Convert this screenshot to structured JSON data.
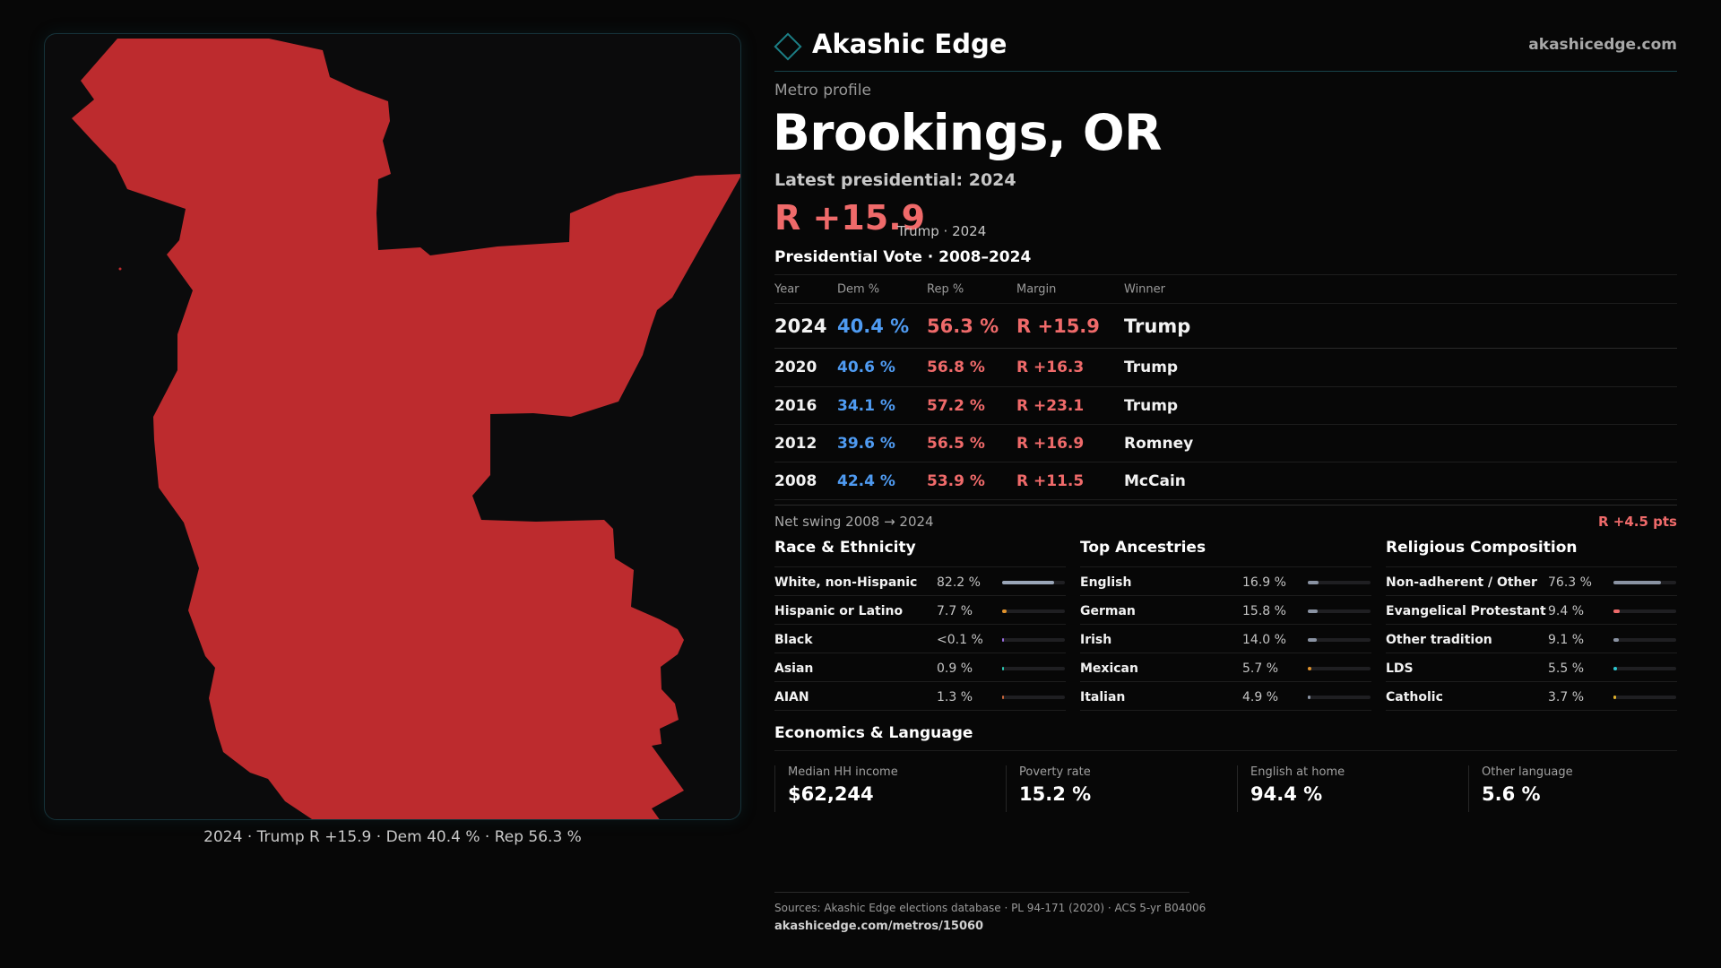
{
  "map": {
    "caption": "2024 · Trump R +15.9 · Dem 40.4 % · Rep 56.3 %",
    "fill_color": "#bd2b2e",
    "background_color": "#0b0b0c"
  },
  "header": {
    "brand": "Akashic Edge",
    "site": "akashicedge.com",
    "eyebrow": "Metro profile",
    "title": "Brookings, OR",
    "latest_label": "Latest presidential: 2024",
    "margin": "R +15.9",
    "margin_sub": "Trump · 2024"
  },
  "vote": {
    "title": "Presidential Vote · 2008–2024",
    "columns": [
      "Year",
      "Dem %",
      "Rep %",
      "Margin",
      "Winner"
    ],
    "rows": [
      {
        "year": "2024",
        "dem": "40.4 %",
        "rep": "56.3 %",
        "margin": "R +15.9",
        "winner": "Trump"
      },
      {
        "year": "2020",
        "dem": "40.6 %",
        "rep": "56.8 %",
        "margin": "R +16.3",
        "winner": "Trump"
      },
      {
        "year": "2016",
        "dem": "34.1 %",
        "rep": "57.2 %",
        "margin": "R +23.1",
        "winner": "Trump"
      },
      {
        "year": "2012",
        "dem": "39.6 %",
        "rep": "56.5 %",
        "margin": "R +16.9",
        "winner": "Romney"
      },
      {
        "year": "2008",
        "dem": "42.4 %",
        "rep": "53.9 %",
        "margin": "R +11.5",
        "winner": "McCain"
      }
    ],
    "swing_label": "Net swing 2008 → 2024",
    "swing_value": "R +4.5 pts"
  },
  "demographics": [
    {
      "title": "Race & Ethnicity",
      "rows": [
        {
          "label": "White, non-Hispanic",
          "value": "82.2 %",
          "pct": 82.2,
          "color": "#9aa6b8"
        },
        {
          "label": "Hispanic or Latino",
          "value": "7.7 %",
          "pct": 7.7,
          "color": "#e0922c"
        },
        {
          "label": "Black",
          "value": "<0.1 %",
          "pct": 0.05,
          "color": "#9a6de0"
        },
        {
          "label": "Asian",
          "value": "0.9 %",
          "pct": 0.9,
          "color": "#2cc7b2"
        },
        {
          "label": "AIAN",
          "value": "1.3 %",
          "pct": 1.3,
          "color": "#c9663b"
        }
      ]
    },
    {
      "title": "Top Ancestries",
      "rows": [
        {
          "label": "English",
          "value": "16.9 %",
          "pct": 16.9,
          "color": "#8a93a3"
        },
        {
          "label": "German",
          "value": "15.8 %",
          "pct": 15.8,
          "color": "#8a93a3"
        },
        {
          "label": "Irish",
          "value": "14.0 %",
          "pct": 14.0,
          "color": "#8a93a3"
        },
        {
          "label": "Mexican",
          "value": "5.7 %",
          "pct": 5.7,
          "color": "#e0922c"
        },
        {
          "label": "Italian",
          "value": "4.9 %",
          "pct": 4.9,
          "color": "#8a93a3"
        }
      ]
    },
    {
      "title": "Religious Composition",
      "rows": [
        {
          "label": "Non-adherent / Other",
          "value": "76.3 %",
          "pct": 76.3,
          "color": "#8a93a3"
        },
        {
          "label": "Evangelical Protestant",
          "value": "9.4 %",
          "pct": 9.4,
          "color": "#ef6a6a"
        },
        {
          "label": "Other tradition",
          "value": "9.1 %",
          "pct": 9.1,
          "color": "#8a93a3"
        },
        {
          "label": "LDS",
          "value": "5.5 %",
          "pct": 5.5,
          "color": "#2cc7d0"
        },
        {
          "label": "Catholic",
          "value": "3.7 %",
          "pct": 3.7,
          "color": "#e0b12c"
        }
      ]
    }
  ],
  "economics": {
    "title": "Economics & Language",
    "cards": [
      {
        "label": "Median HH income",
        "value": "$62,244"
      },
      {
        "label": "Poverty rate",
        "value": "15.2 %"
      },
      {
        "label": "English at home",
        "value": "94.4 %"
      },
      {
        "label": "Other language",
        "value": "5.6 %"
      }
    ]
  },
  "footer": {
    "sources": "Sources: Akashic Edge elections database · PL 94-171 (2020) · ACS 5-yr B04006",
    "url": "akashicedge.com/metros/15060"
  },
  "colors": {
    "dem": "#4f9bf2",
    "rep": "#ef6a6a",
    "accent": "#1c7f86"
  }
}
